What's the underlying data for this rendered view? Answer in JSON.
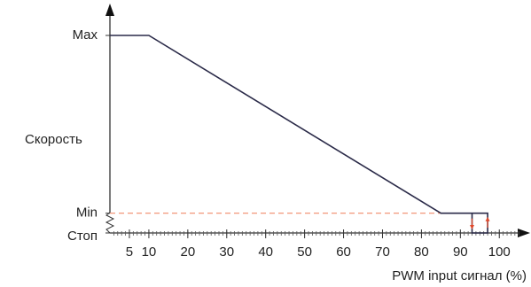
{
  "chart_data": {
    "type": "line",
    "y_label": "Скорость",
    "x_label": "PWM input сигнал (%)",
    "series": [
      {
        "color": "#2a2a48",
        "x": [
          0,
          10,
          85,
          97,
          97,
          93,
          93
        ],
        "values": [
          100,
          100,
          10,
          10,
          0,
          0,
          10
        ]
      }
    ],
    "xlim": [
      0,
      107
    ],
    "ylim": [
      0,
      110
    ],
    "xticks": [
      5,
      10,
      20,
      30,
      40,
      50,
      60,
      70,
      80,
      90,
      100
    ],
    "yticks": [
      {
        "value": 100,
        "label": "Max"
      },
      {
        "value": 10,
        "label": "Min"
      },
      {
        "value": 0,
        "label": "Стоп"
      }
    ],
    "guide_color": "#f08a6a",
    "arrow_color": "#e0482a"
  }
}
